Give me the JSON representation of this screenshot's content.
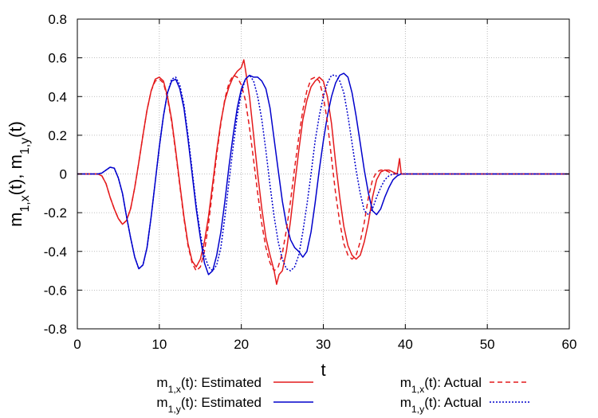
{
  "chart_data": {
    "type": "line",
    "xlabel": "t",
    "ylabel": "m1,x(t), m1,y(t)",
    "xlim": [
      0,
      60
    ],
    "ylim": [
      -0.8,
      0.8
    ],
    "xticks": [
      0,
      10,
      20,
      30,
      40,
      50,
      60
    ],
    "yticks": [
      -0.8,
      -0.6,
      -0.4,
      -0.2,
      0,
      0.2,
      0.4,
      0.6,
      0.8
    ],
    "grid": true,
    "legend_position": "bottom",
    "series": [
      {
        "name": "m1,x(t): Estimated",
        "color": "#e41a1c",
        "dash": "solid",
        "x": [
          0,
          2.5,
          3.0,
          3.5,
          4.0,
          4.5,
          5.0,
          5.5,
          6.0,
          6.5,
          7.0,
          7.5,
          8.0,
          8.5,
          9.0,
          9.5,
          10.0,
          10.5,
          11.0,
          11.5,
          12.0,
          12.5,
          13.0,
          13.5,
          14.0,
          14.5,
          15.0,
          15.5,
          16.0,
          16.5,
          17.0,
          17.5,
          18.0,
          18.5,
          19.0,
          19.5,
          20.0,
          20.3,
          20.5,
          21.0,
          21.5,
          22.0,
          22.5,
          23.0,
          23.5,
          24.0,
          24.3,
          24.6,
          25.0,
          25.5,
          26.0,
          26.5,
          27.0,
          27.5,
          28.0,
          28.5,
          29.0,
          29.5,
          30.0,
          30.5,
          31.0,
          31.5,
          32.0,
          32.5,
          33.0,
          33.5,
          34.0,
          34.5,
          35.0,
          35.5,
          36.0,
          36.5,
          37.0,
          37.5,
          38.0,
          38.5,
          39.0,
          39.3,
          39.5,
          60
        ],
        "values": [
          0,
          0,
          -0.01,
          -0.05,
          -0.12,
          -0.18,
          -0.23,
          -0.26,
          -0.24,
          -0.18,
          -0.07,
          0.06,
          0.2,
          0.33,
          0.43,
          0.49,
          0.5,
          0.48,
          0.4,
          0.28,
          0.12,
          -0.05,
          -0.22,
          -0.36,
          -0.45,
          -0.48,
          -0.44,
          -0.35,
          -0.22,
          -0.05,
          0.12,
          0.27,
          0.38,
          0.45,
          0.5,
          0.53,
          0.55,
          0.59,
          0.54,
          0.4,
          0.2,
          0.0,
          -0.18,
          -0.33,
          -0.42,
          -0.5,
          -0.57,
          -0.52,
          -0.5,
          -0.4,
          -0.24,
          -0.06,
          0.12,
          0.28,
          0.38,
          0.45,
          0.48,
          0.5,
          0.48,
          0.4,
          0.26,
          0.06,
          -0.12,
          -0.27,
          -0.37,
          -0.42,
          -0.44,
          -0.42,
          -0.35,
          -0.25,
          -0.12,
          -0.03,
          0.01,
          0.02,
          0.02,
          0.01,
          0.0,
          0.08,
          0.0,
          0
        ]
      },
      {
        "name": "m1,y(t): Estimated",
        "color": "#0000cc",
        "dash": "solid",
        "x": [
          0,
          2.5,
          3.0,
          3.5,
          4.0,
          4.5,
          5.0,
          5.5,
          6.0,
          6.5,
          7.0,
          7.5,
          8.0,
          8.5,
          9.0,
          9.5,
          10.0,
          10.5,
          11.0,
          11.5,
          12.0,
          12.5,
          13.0,
          13.5,
          14.0,
          14.5,
          15.0,
          15.5,
          16.0,
          16.5,
          17.0,
          17.5,
          18.0,
          18.5,
          19.0,
          19.5,
          20.0,
          20.5,
          21.0,
          21.5,
          22.0,
          22.5,
          23.0,
          23.5,
          24.0,
          24.5,
          25.0,
          25.5,
          26.0,
          26.5,
          27.0,
          27.5,
          28.0,
          28.5,
          29.0,
          29.5,
          30.0,
          30.5,
          31.0,
          31.5,
          32.0,
          32.5,
          33.0,
          33.5,
          34.0,
          34.5,
          35.0,
          35.5,
          36.0,
          36.5,
          37.0,
          37.5,
          38.0,
          38.5,
          39.0,
          39.5,
          60
        ],
        "values": [
          0,
          0,
          0.005,
          0.02,
          0.035,
          0.03,
          -0.02,
          -0.1,
          -0.22,
          -0.33,
          -0.43,
          -0.49,
          -0.47,
          -0.38,
          -0.22,
          -0.04,
          0.14,
          0.3,
          0.42,
          0.48,
          0.49,
          0.44,
          0.34,
          0.18,
          0.0,
          -0.18,
          -0.33,
          -0.46,
          -0.52,
          -0.5,
          -0.42,
          -0.3,
          -0.14,
          0.04,
          0.2,
          0.34,
          0.44,
          0.49,
          0.51,
          0.5,
          0.5,
          0.48,
          0.44,
          0.34,
          0.18,
          0.02,
          -0.14,
          -0.26,
          -0.34,
          -0.38,
          -0.4,
          -0.43,
          -0.4,
          -0.3,
          -0.15,
          0.02,
          0.17,
          0.3,
          0.4,
          0.47,
          0.51,
          0.52,
          0.5,
          0.42,
          0.3,
          0.16,
          0.02,
          -0.1,
          -0.19,
          -0.21,
          -0.18,
          -0.12,
          -0.07,
          -0.03,
          -0.01,
          0.0,
          0
        ]
      },
      {
        "name": "m1,x(t): Actual",
        "color": "#e41a1c",
        "dash": "dashed",
        "x": [
          0,
          2.5,
          3.0,
          3.5,
          4.0,
          4.5,
          5.0,
          5.5,
          6.0,
          6.5,
          7.0,
          7.5,
          8.0,
          8.5,
          9.0,
          9.5,
          10.0,
          10.5,
          11.0,
          11.5,
          12.0,
          12.5,
          13.0,
          13.5,
          14.0,
          14.5,
          15.0,
          15.5,
          16.0,
          16.5,
          17.0,
          17.5,
          18.0,
          18.5,
          19.0,
          19.5,
          20.0,
          20.5,
          21.0,
          21.5,
          22.0,
          22.5,
          23.0,
          23.5,
          24.0,
          24.5,
          25.0,
          25.5,
          26.0,
          26.5,
          27.0,
          27.5,
          28.0,
          28.5,
          29.0,
          29.5,
          30.0,
          30.5,
          31.0,
          31.5,
          32.0,
          32.5,
          33.0,
          33.5,
          34.0,
          34.5,
          35.0,
          35.5,
          36.0,
          36.5,
          37.0,
          37.5,
          38.0,
          38.5,
          39.0,
          39.5,
          60
        ],
        "values": [
          0,
          0,
          -0.01,
          -0.05,
          -0.12,
          -0.18,
          -0.23,
          -0.26,
          -0.24,
          -0.18,
          -0.07,
          0.06,
          0.2,
          0.33,
          0.43,
          0.48,
          0.49,
          0.47,
          0.39,
          0.27,
          0.11,
          -0.06,
          -0.23,
          -0.37,
          -0.46,
          -0.5,
          -0.48,
          -0.4,
          -0.26,
          -0.08,
          0.1,
          0.26,
          0.39,
          0.47,
          0.51,
          0.5,
          0.46,
          0.38,
          0.24,
          0.07,
          -0.1,
          -0.26,
          -0.38,
          -0.46,
          -0.5,
          -0.48,
          -0.41,
          -0.29,
          -0.14,
          0.03,
          0.19,
          0.33,
          0.43,
          0.49,
          0.5,
          0.48,
          0.4,
          0.27,
          0.08,
          -0.1,
          -0.25,
          -0.36,
          -0.42,
          -0.44,
          -0.42,
          -0.35,
          -0.25,
          -0.12,
          -0.03,
          0.01,
          0.02,
          0.02,
          0.01,
          0.0,
          0.0,
          0.0,
          0
        ]
      },
      {
        "name": "m1,y(t): Actual",
        "color": "#0000cc",
        "dash": "dotted",
        "x": [
          0,
          2.5,
          3.0,
          3.5,
          4.0,
          4.5,
          5.0,
          5.5,
          6.0,
          6.5,
          7.0,
          7.5,
          8.0,
          8.5,
          9.0,
          9.5,
          10.0,
          10.5,
          11.0,
          11.5,
          12.0,
          12.5,
          13.0,
          13.5,
          14.0,
          14.5,
          15.0,
          15.5,
          16.0,
          16.5,
          17.0,
          17.5,
          18.0,
          18.5,
          19.0,
          19.5,
          20.0,
          20.5,
          21.0,
          21.5,
          22.0,
          22.5,
          23.0,
          23.5,
          24.0,
          24.5,
          25.0,
          25.5,
          26.0,
          26.5,
          27.0,
          27.5,
          28.0,
          28.5,
          29.0,
          29.5,
          30.0,
          30.5,
          31.0,
          31.5,
          32.0,
          32.5,
          33.0,
          33.5,
          34.0,
          34.5,
          35.0,
          35.5,
          36.0,
          36.5,
          37.0,
          37.5,
          38.0,
          38.5,
          39.0,
          39.5,
          60
        ],
        "values": [
          0,
          0,
          0.005,
          0.02,
          0.035,
          0.03,
          -0.02,
          -0.1,
          -0.22,
          -0.33,
          -0.43,
          -0.49,
          -0.47,
          -0.38,
          -0.22,
          -0.04,
          0.14,
          0.3,
          0.42,
          0.49,
          0.5,
          0.46,
          0.36,
          0.2,
          0.02,
          -0.16,
          -0.31,
          -0.42,
          -0.48,
          -0.5,
          -0.47,
          -0.38,
          -0.22,
          -0.04,
          0.14,
          0.3,
          0.42,
          0.49,
          0.51,
          0.48,
          0.4,
          0.28,
          0.12,
          -0.06,
          -0.22,
          -0.35,
          -0.44,
          -0.49,
          -0.5,
          -0.48,
          -0.42,
          -0.3,
          -0.16,
          0.0,
          0.17,
          0.3,
          0.4,
          0.47,
          0.51,
          0.51,
          0.48,
          0.42,
          0.3,
          0.16,
          0.02,
          -0.1,
          -0.19,
          -0.21,
          -0.18,
          -0.12,
          -0.07,
          -0.03,
          -0.01,
          0.0,
          0.0,
          0.0,
          0
        ]
      }
    ]
  },
  "colors": {
    "estimated_x": "#e41a1c",
    "estimated_y": "#0000cc",
    "grid": "#aaaaaa"
  }
}
